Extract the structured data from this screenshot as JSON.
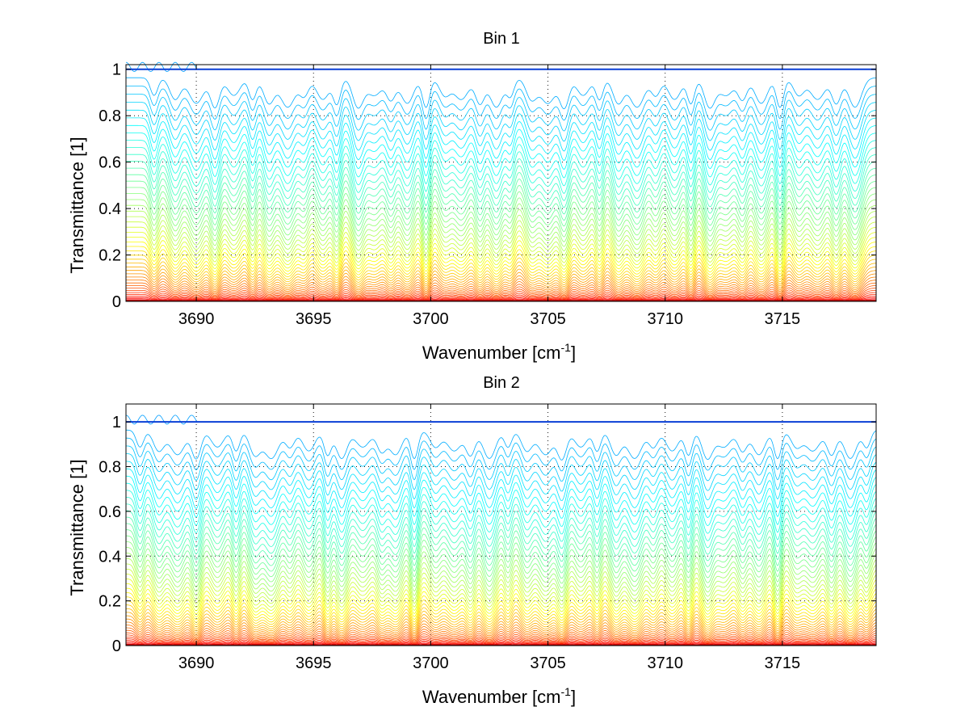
{
  "chart_data": [
    {
      "type": "line",
      "title": "Bin 1",
      "xlabel": "Wavenumber [cm",
      "xlabel_sup": "-1",
      "xlabel_close": "]",
      "ylabel": "Transmittance [1]",
      "xlim": [
        3687,
        3719
      ],
      "ylim": [
        0,
        1.02
      ],
      "xticks": [
        3690,
        3695,
        3700,
        3705,
        3710,
        3715
      ],
      "xtick_labels": [
        "3690",
        "3695",
        "3700",
        "3705",
        "3710",
        "3715"
      ],
      "yticks": [
        0,
        0.2,
        0.4,
        0.6,
        0.8,
        1
      ],
      "ytick_labels": [
        "0",
        "0.2",
        "0.4",
        "0.6",
        "0.8",
        "1"
      ],
      "grid": true,
      "series_count": 50,
      "colormap": "jet",
      "baseline_transmittance_range": [
        0.0,
        1.0
      ],
      "absorption_line_centers": [
        3688.2,
        3689.1,
        3690.0,
        3690.8,
        3691.6,
        3692.4,
        3693.1,
        3693.9,
        3694.6,
        3695.4,
        3696.0,
        3696.9,
        3697.6,
        3698.3,
        3699.0,
        3699.8,
        3700.6,
        3701.3,
        3702.1,
        3702.8,
        3703.4,
        3704.3,
        3705.0,
        3705.7,
        3706.5,
        3707.2,
        3708.0,
        3708.8,
        3709.6,
        3710.4,
        3711.1,
        3711.9,
        3712.6,
        3713.3,
        3714.1,
        3714.9,
        3715.7,
        3716.5,
        3717.3,
        3718.1
      ]
    },
    {
      "type": "line",
      "title": "Bin 2",
      "xlabel": "Wavenumber [cm",
      "xlabel_sup": "-1",
      "xlabel_close": "]",
      "ylabel": "Transmittance [1]",
      "xlim": [
        3687,
        3719
      ],
      "ylim": [
        0,
        1.08
      ],
      "xticks": [
        3690,
        3695,
        3700,
        3705,
        3710,
        3715
      ],
      "xtick_labels": [
        "3690",
        "3695",
        "3700",
        "3705",
        "3710",
        "3715"
      ],
      "yticks": [
        0,
        0.2,
        0.4,
        0.6,
        0.8,
        1
      ],
      "ytick_labels": [
        "0",
        "0.2",
        "0.4",
        "0.6",
        "0.8",
        "1"
      ],
      "grid": true,
      "series_count": 50,
      "colormap": "jet",
      "baseline_transmittance_range": [
        0.0,
        1.0
      ],
      "absorption_line_centers": [
        3687.6,
        3688.4,
        3689.2,
        3690.0,
        3690.9,
        3691.7,
        3692.5,
        3693.2,
        3694.0,
        3694.8,
        3695.6,
        3696.2,
        3697.1,
        3697.9,
        3698.5,
        3699.3,
        3700.2,
        3701.0,
        3701.7,
        3702.5,
        3703.3,
        3704.1,
        3704.9,
        3705.6,
        3706.4,
        3707.1,
        3707.9,
        3708.7,
        3709.5,
        3710.3,
        3711.0,
        3711.8,
        3712.5,
        3713.3,
        3714.0,
        3714.8,
        3715.6,
        3716.3,
        3717.1,
        3717.9,
        3718.6
      ]
    }
  ]
}
